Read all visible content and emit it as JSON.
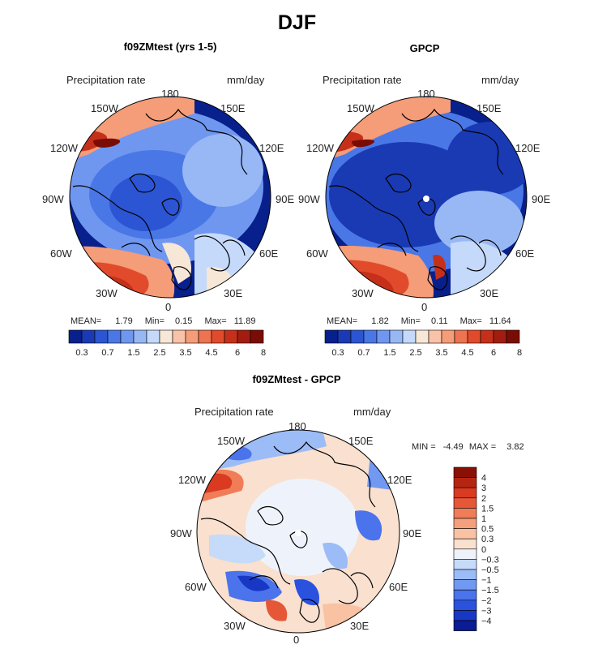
{
  "figure": {
    "title": "DJF",
    "precip_label": "Precipitation rate",
    "units": "mm/day"
  },
  "colors": {
    "abs_scale": [
      "#08208c",
      "#1a3ab4",
      "#2c55d4",
      "#4a77e6",
      "#6f97ef",
      "#97b8f5",
      "#c5d9fa",
      "#f7e7d7",
      "#f8c3a8",
      "#f59c78",
      "#ee7350",
      "#e14b2c",
      "#c6301a",
      "#a31c10",
      "#7a0c06"
    ],
    "diff_scale": [
      "#0a1b94",
      "#1737c4",
      "#2a52df",
      "#4a73ec",
      "#7199f2",
      "#9bbcf7",
      "#c6daf9",
      "#eef3fb",
      "#f9e0cf",
      "#f9c2a3",
      "#f5a07d",
      "#f07c58",
      "#e65738",
      "#d93a20",
      "#b52612",
      "#8a0f05"
    ],
    "coast": "#000000",
    "land_white_dot": "#ffffff"
  },
  "panel_a": {
    "subtitle": "f09ZMtest (yrs 1-5)",
    "stats": {
      "mean_label": "MEAN=",
      "mean": "1.79",
      "min_label": "Min=",
      "min": "0.15",
      "max_label": "Max=",
      "max": "11.89"
    }
  },
  "panel_b": {
    "subtitle": "GPCP",
    "stats": {
      "mean_label": "MEAN=",
      "mean": "1.82",
      "min_label": "Min=",
      "min": "0.11",
      "max_label": "Max=",
      "max": "11.64"
    }
  },
  "panel_c": {
    "subtitle": "f09ZMtest - GPCP",
    "stats": {
      "min_label": "MIN =",
      "min": "-4.49",
      "max_label": "MAX =",
      "max": "3.82"
    }
  },
  "map_labels": {
    "top": "180",
    "bottom": "0",
    "left": "90W",
    "right": "90E",
    "ul1": "150W",
    "ul2": "120W",
    "ur1": "150E",
    "ur2": "120E",
    "ll1": "60W",
    "ll2": "30W",
    "lr1": "60E",
    "lr2": "30E"
  },
  "chart_data": [
    {
      "type": "heatmap",
      "title": "f09ZMtest (yrs 1-5)",
      "projection": "north polar stereographic",
      "variable": "Precipitation rate",
      "units": "mm/day",
      "mean": 1.79,
      "min": 0.15,
      "max": 11.89,
      "colorbar_levels": [
        0.2,
        0.3,
        0.5,
        0.7,
        1,
        1.5,
        2,
        2.5,
        3,
        3.5,
        4,
        4.5,
        5,
        6,
        7,
        8
      ],
      "colorbar_ticks": [
        "0.3",
        "0.7",
        "1.5",
        "2.5",
        "3.5",
        "4.5",
        "6",
        "8"
      ]
    },
    {
      "type": "heatmap",
      "title": "GPCP",
      "projection": "north polar stereographic",
      "variable": "Precipitation rate",
      "units": "mm/day",
      "mean": 1.82,
      "min": 0.11,
      "max": 11.64,
      "colorbar_levels": [
        0.2,
        0.3,
        0.5,
        0.7,
        1,
        1.5,
        2,
        2.5,
        3,
        3.5,
        4,
        4.5,
        5,
        6,
        7,
        8
      ],
      "colorbar_ticks": [
        "0.3",
        "0.7",
        "1.5",
        "2.5",
        "3.5",
        "4.5",
        "6",
        "8"
      ]
    },
    {
      "type": "heatmap",
      "title": "f09ZMtest - GPCP",
      "projection": "north polar stereographic",
      "variable": "Precipitation rate",
      "units": "mm/day",
      "min": -4.49,
      "max": 3.82,
      "colorbar_levels": [
        4,
        3,
        2,
        1.5,
        1,
        0.5,
        0.3,
        0,
        -0.3,
        -0.5,
        -1,
        -1.5,
        -2,
        -3,
        -4
      ],
      "colorbar_ticks": [
        "4",
        "3",
        "2",
        "1.5",
        "1",
        "0.5",
        "0.3",
        "0",
        "−0.3",
        "−0.5",
        "−1",
        "−1.5",
        "−2",
        "−3",
        "−4"
      ]
    }
  ]
}
